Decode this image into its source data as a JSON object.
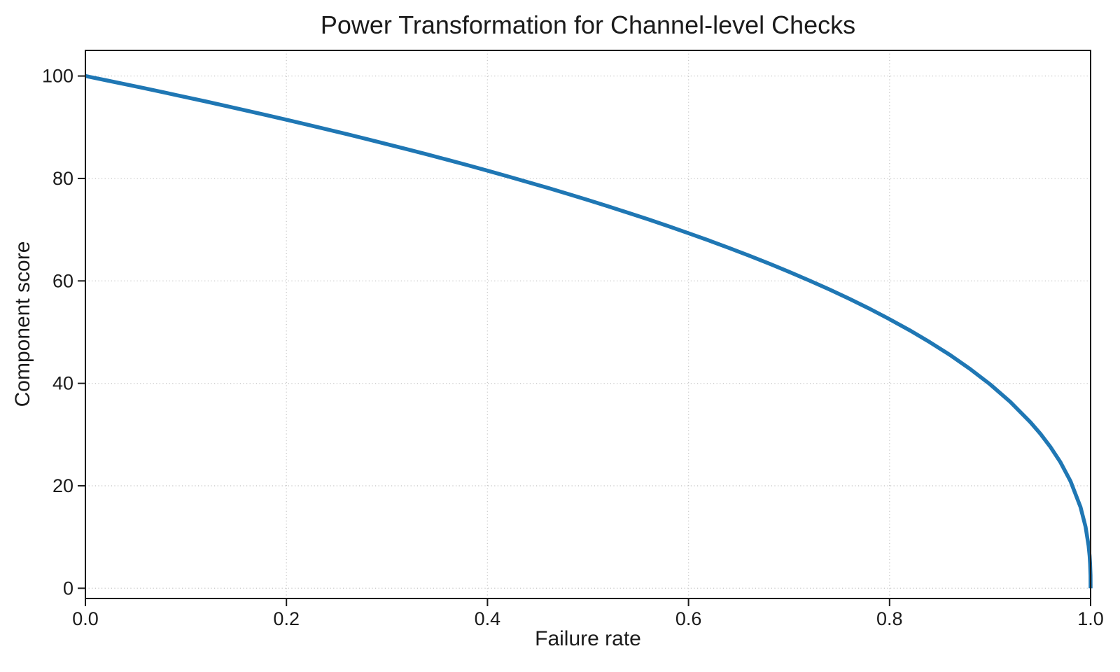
{
  "chart_data": {
    "type": "line",
    "title": "Power Transformation for Channel-level Checks",
    "xlabel": "Failure rate",
    "ylabel": "Component score",
    "xlim": [
      0.0,
      1.0
    ],
    "ylim": [
      -2,
      105
    ],
    "xticks": [
      0.0,
      0.2,
      0.4,
      0.6,
      0.8,
      1.0
    ],
    "xtick_labels": [
      "0.0",
      "0.2",
      "0.4",
      "0.6",
      "0.8",
      "1.0"
    ],
    "yticks": [
      0,
      20,
      40,
      60,
      80,
      100
    ],
    "ytick_labels": [
      "0",
      "20",
      "40",
      "60",
      "80",
      "100"
    ],
    "grid": true,
    "grid_style": "dotted",
    "legend": "none",
    "line_color": "#1f77b4",
    "line_width": 5.5,
    "series": [
      {
        "x": [
          0,
          0.02,
          0.04,
          0.06,
          0.08,
          0.1,
          0.12,
          0.14,
          0.16,
          0.18,
          0.2,
          0.22,
          0.24,
          0.26,
          0.28,
          0.3,
          0.32,
          0.34,
          0.36,
          0.38,
          0.4,
          0.42,
          0.44,
          0.46,
          0.48,
          0.5,
          0.52,
          0.54,
          0.56,
          0.58,
          0.6,
          0.62,
          0.64,
          0.66,
          0.68,
          0.7,
          0.72,
          0.74,
          0.76,
          0.78,
          0.8,
          0.82,
          0.84,
          0.86,
          0.88,
          0.9,
          0.92,
          0.94,
          0.95,
          0.96,
          0.97,
          0.98,
          0.99,
          0.995,
          0.998,
          0.999,
          0.9995,
          0.9999,
          1.0
        ],
        "y": [
          100,
          99.19,
          98.38,
          97.56,
          96.72,
          95.87,
          95.02,
          94.15,
          93.26,
          92.37,
          91.46,
          90.54,
          89.6,
          88.65,
          87.69,
          86.7,
          85.7,
          84.69,
          83.65,
          82.6,
          81.52,
          80.42,
          79.3,
          78.16,
          76.98,
          75.79,
          74.56,
          73.3,
          72.01,
          70.68,
          69.31,
          67.91,
          66.45,
          64.95,
          63.4,
          61.78,
          60.1,
          58.34,
          56.5,
          54.57,
          52.53,
          50.36,
          48.04,
          45.55,
          42.82,
          39.81,
          36.41,
          32.45,
          30.17,
          27.59,
          24.6,
          20.91,
          15.85,
          12.01,
          8.33,
          6.31,
          4.78,
          2.51,
          0
        ]
      }
    ]
  }
}
